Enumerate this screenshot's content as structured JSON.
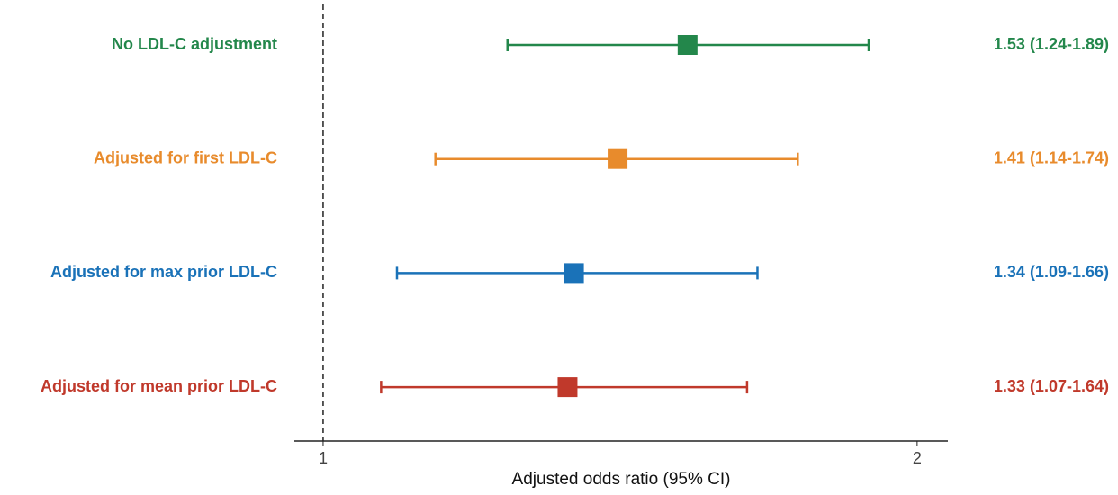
{
  "chart_data": {
    "type": "forest",
    "categories": [
      "No LDL-C adjustment",
      "Adjusted for first LDL-C",
      "Adjusted for max prior LDL-C",
      "Adjusted for mean prior LDL-C"
    ],
    "values": [
      1.53,
      1.41,
      1.34,
      1.33
    ],
    "lower": [
      1.24,
      1.14,
      1.09,
      1.07
    ],
    "upper": [
      1.89,
      1.74,
      1.66,
      1.64
    ],
    "value_labels": [
      "1.53 (1.24-1.89)",
      "1.41 (1.14-1.74)",
      "1.34 (1.09-1.66)",
      "1.33 (1.07-1.64)"
    ],
    "colors": [
      "#23874b",
      "#e88b2c",
      "#1a72b8",
      "#c0392b"
    ],
    "xlabel": "Adjusted odds ratio (95% CI)",
    "xlim": [
      0.967,
      2.073
    ],
    "xticks": [
      1,
      2
    ],
    "log_x": true,
    "ref_line": 1
  }
}
